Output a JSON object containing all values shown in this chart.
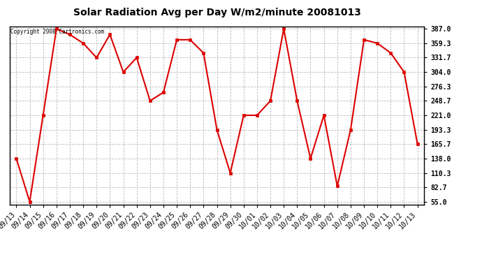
{
  "title": "Solar Radiation Avg per Day W/m2/minute 20081013",
  "copyright_text": "Copyright 2008 Cartronics.com",
  "x_labels": [
    "09/13",
    "09/14",
    "09/15",
    "09/16",
    "09/17",
    "09/18",
    "09/19",
    "09/20",
    "09/21",
    "09/22",
    "09/23",
    "09/24",
    "09/25",
    "09/26",
    "09/27",
    "09/28",
    "09/29",
    "09/30",
    "10/01",
    "10/02",
    "10/03",
    "10/04",
    "10/05",
    "10/06",
    "10/07",
    "10/08",
    "10/09",
    "10/10",
    "10/11",
    "10/12",
    "10/13"
  ],
  "y_values": [
    138.0,
    55.0,
    221.0,
    387.0,
    376.0,
    359.3,
    331.7,
    376.0,
    304.0,
    331.7,
    248.7,
    265.0,
    366.0,
    366.0,
    340.5,
    193.3,
    110.3,
    221.0,
    221.0,
    248.7,
    387.0,
    248.7,
    138.0,
    221.0,
    85.0,
    193.3,
    366.0,
    359.3,
    340.5,
    304.0,
    165.7
  ],
  "line_color": "#dd0000",
  "marker_color": "#dd0000",
  "bg_color": "#ffffff",
  "plot_bg_color": "#ffffff",
  "grid_color": "#bbbbbb",
  "y_min": 55.0,
  "y_max": 387.0,
  "y_ticks": [
    55.0,
    82.7,
    110.3,
    138.0,
    165.7,
    193.3,
    221.0,
    248.7,
    276.3,
    304.0,
    331.7,
    359.3,
    387.0
  ]
}
